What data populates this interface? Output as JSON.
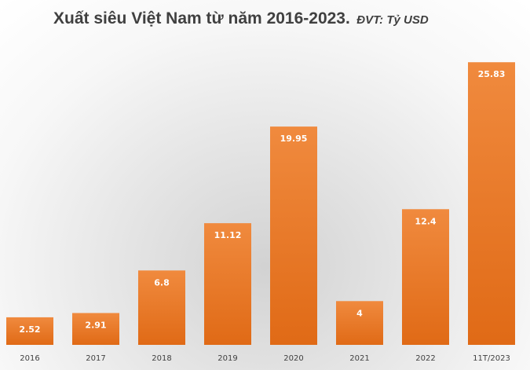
{
  "chart_data": {
    "type": "bar",
    "title": "Xuất siêu Việt Nam từ năm 2016-2023.",
    "subtitle": "ĐVT: Tỷ USD",
    "categories": [
      "2016",
      "2017",
      "2018",
      "2019",
      "2020",
      "2021",
      "2022",
      "11T/2023"
    ],
    "values": [
      2.52,
      2.91,
      6.8,
      11.12,
      19.95,
      4,
      12.4,
      25.83
    ],
    "value_labels": [
      "2.52",
      "2.91",
      "6.8",
      "11.12",
      "19.95",
      "4",
      "12.4",
      "25.83"
    ],
    "ylim": [
      0,
      28
    ],
    "grid": false,
    "legend": "none",
    "bar_color_top": "#f08a3e",
    "bar_color_bottom": "#e06a16",
    "label_color": "#ffffff",
    "tick_label_color": "#404040"
  }
}
